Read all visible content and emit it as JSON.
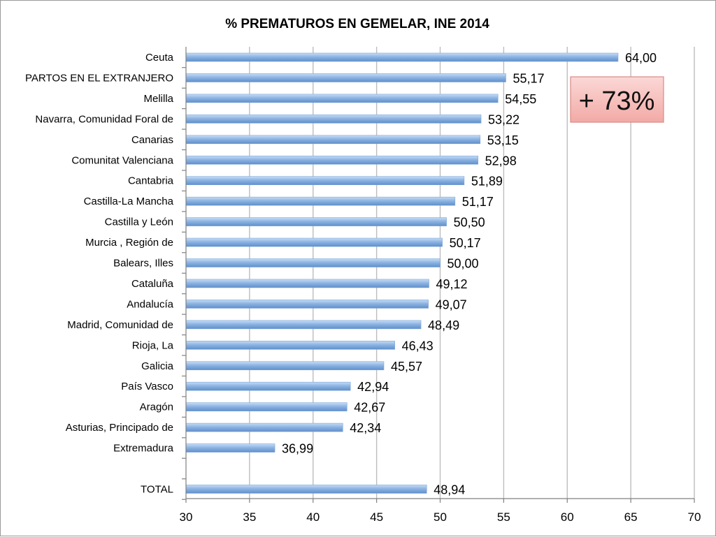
{
  "chart_data": {
    "type": "bar",
    "orientation": "horizontal",
    "title": "% PREMATUROS EN GEMELAR, INE 2014",
    "xlabel": "",
    "ylabel": "",
    "xlim": [
      30,
      70
    ],
    "x_ticks": [
      30,
      35,
      40,
      45,
      50,
      55,
      60,
      65,
      70
    ],
    "x_tick_labels": [
      "30",
      "35",
      "40",
      "45",
      "50",
      "55",
      "60",
      "65",
      "70"
    ],
    "grid": true,
    "legend": "none",
    "bar_color": "#8db4e2",
    "categories": [
      "Ceuta",
      "PARTOS EN EL EXTRANJERO",
      "Melilla",
      "Navarra, Comunidad Foral de",
      "Canarias",
      "Comunitat Valenciana",
      "Cantabria",
      "Castilla-La Mancha",
      "Castilla y León",
      "Murcia , Región de",
      "Balears, Illes",
      "Cataluña",
      "Andalucía",
      "Madrid, Comunidad de",
      "Rioja, La",
      "Galicia",
      "País Vasco",
      "Aragón",
      "Asturias, Principado de",
      "Extremadura",
      "",
      "TOTAL"
    ],
    "values": [
      64.0,
      55.17,
      54.55,
      53.22,
      53.15,
      52.98,
      51.89,
      51.17,
      50.5,
      50.17,
      50.0,
      49.12,
      49.07,
      48.49,
      46.43,
      45.57,
      42.94,
      42.67,
      42.34,
      36.99,
      null,
      48.94
    ],
    "value_labels": [
      "64,00",
      "55,17",
      "54,55",
      "53,22",
      "53,15",
      "52,98",
      "51,89",
      "51,17",
      "50,50",
      "50,17",
      "50,00",
      "49,12",
      "49,07",
      "48,49",
      "46,43",
      "45,57",
      "42,94",
      "42,67",
      "42,34",
      "36,99",
      "",
      "48,94"
    ],
    "annotations": [
      {
        "text": "+ 73%",
        "placement": "top-right",
        "fill_color": "#f7c3c0",
        "border_color": "#d98a86"
      }
    ]
  }
}
